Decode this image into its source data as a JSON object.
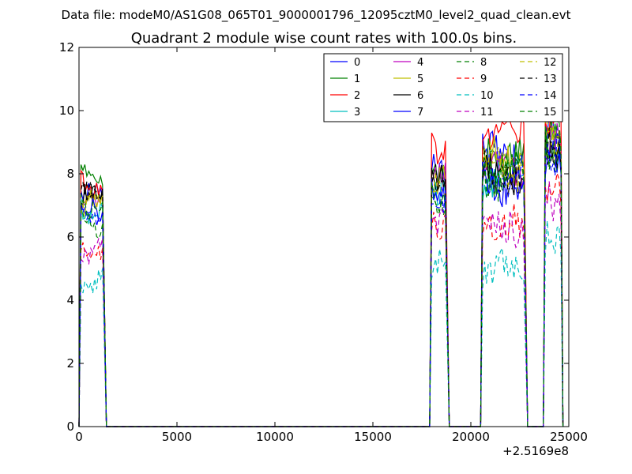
{
  "figure": {
    "suptitle": "Data file: modeM0/AS1G08_065T01_9000001796_12095cztM0_level2_quad_clean.evt"
  },
  "chart_data": {
    "type": "line",
    "title": "Quadrant 2 module wise count rates with 100.0s bins.",
    "xlabel": "",
    "ylabel": "",
    "x_offset_label": "+2.5169e8",
    "xlim": [
      0,
      25000
    ],
    "ylim": [
      0,
      12
    ],
    "x_ticks": [
      0,
      5000,
      10000,
      15000,
      20000,
      25000
    ],
    "x_tick_labels": [
      "0",
      "5000",
      "10000",
      "15000",
      "20000",
      "25000"
    ],
    "y_ticks": [
      0,
      2,
      4,
      6,
      8,
      10,
      12
    ],
    "y_tick_labels": [
      "0",
      "2",
      "4",
      "6",
      "8",
      "10",
      "12"
    ],
    "grid": false,
    "legend_position": "top-right",
    "legend_columns": 4,
    "segments": [
      {
        "x_start": 100,
        "x_end": 1200,
        "drop_to": 1400
      },
      {
        "x_start": 18000,
        "x_end": 18700,
        "drop_to": 18900
      },
      {
        "x_start": 20600,
        "x_end": 22700,
        "drop_to": 22900
      },
      {
        "x_start": 23800,
        "x_end": 24600,
        "drop_to": 24700
      }
    ],
    "series": [
      {
        "name": "0",
        "color": "#0000ff",
        "dash": "solid",
        "seg_means": [
          7.2,
          8.0,
          8.6,
          9.5
        ]
      },
      {
        "name": "1",
        "color": "#008000",
        "dash": "solid",
        "seg_means": [
          7.8,
          8.1,
          8.6,
          9.4
        ]
      },
      {
        "name": "2",
        "color": "#ff0000",
        "dash": "solid",
        "seg_means": [
          7.6,
          8.9,
          9.3,
          10.1
        ]
      },
      {
        "name": "3",
        "color": "#00bfbf",
        "dash": "solid",
        "seg_means": [
          6.9,
          7.7,
          7.9,
          8.6
        ]
      },
      {
        "name": "4",
        "color": "#bf00bf",
        "dash": "solid",
        "seg_means": [
          7.3,
          8.0,
          8.1,
          8.9
        ]
      },
      {
        "name": "5",
        "color": "#bfbf00",
        "dash": "solid",
        "seg_means": [
          7.1,
          7.8,
          8.4,
          9.0
        ]
      },
      {
        "name": "6",
        "color": "#000000",
        "dash": "solid",
        "seg_means": [
          7.3,
          7.6,
          7.9,
          8.9
        ]
      },
      {
        "name": "7",
        "color": "#0000ff",
        "dash": "solid",
        "seg_means": [
          6.8,
          7.4,
          7.7,
          8.6
        ]
      },
      {
        "name": "8",
        "color": "#008000",
        "dash": "dashed",
        "seg_means": [
          6.5,
          7.2,
          7.9,
          8.7
        ]
      },
      {
        "name": "9",
        "color": "#ff0000",
        "dash": "dashed",
        "seg_means": [
          5.6,
          6.6,
          6.4,
          7.3
        ]
      },
      {
        "name": "10",
        "color": "#00bfbf",
        "dash": "dashed",
        "seg_means": [
          4.7,
          5.4,
          5.1,
          5.8
        ]
      },
      {
        "name": "11",
        "color": "#bf00bf",
        "dash": "dashed",
        "seg_means": [
          5.5,
          6.4,
          6.3,
          7.0
        ]
      },
      {
        "name": "12",
        "color": "#bfbf00",
        "dash": "dashed",
        "seg_means": [
          6.9,
          7.5,
          8.2,
          9.2
        ]
      },
      {
        "name": "13",
        "color": "#000000",
        "dash": "dashed",
        "seg_means": [
          7.2,
          7.6,
          8.0,
          9.0
        ]
      },
      {
        "name": "14",
        "color": "#0000ff",
        "dash": "dashed",
        "seg_means": [
          6.7,
          7.3,
          7.8,
          8.8
        ]
      },
      {
        "name": "15",
        "color": "#008000",
        "dash": "dashed",
        "seg_means": [
          7.0,
          7.5,
          8.1,
          9.1
        ]
      }
    ]
  }
}
